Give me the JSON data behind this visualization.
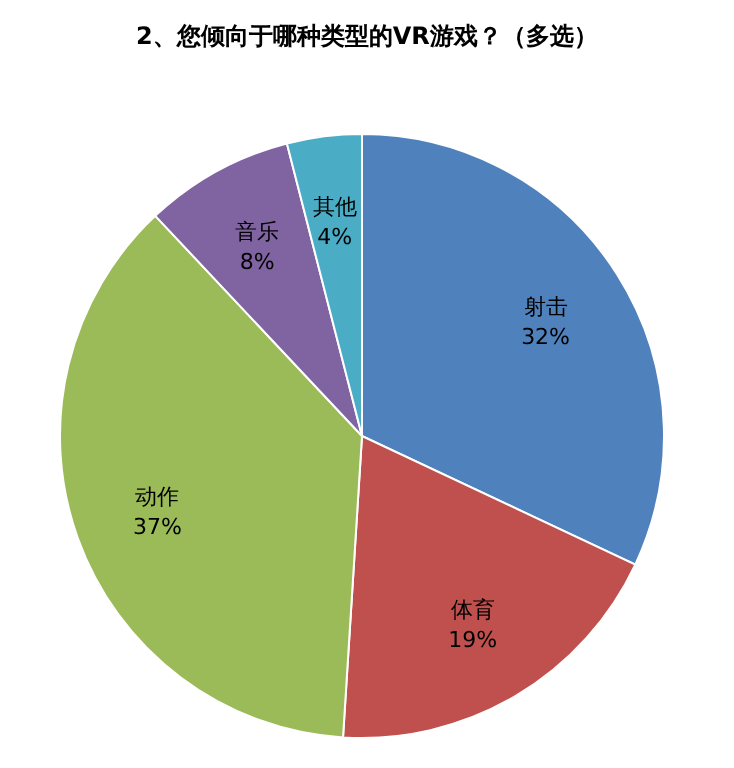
{
  "chart_data": {
    "type": "pie",
    "title": "2、您倾向于哪种类型的VR游戏？（多选）",
    "categories": [
      "射击",
      "体育",
      "动作",
      "音乐",
      "其他"
    ],
    "values": [
      32,
      19,
      37,
      8,
      4
    ],
    "value_labels": [
      "32%",
      "19%",
      "37%",
      "8%",
      "4%"
    ],
    "colors": [
      "#4f81bd",
      "#c0504d",
      "#9bbb59",
      "#8064a2",
      "#4bacc6"
    ],
    "legend": false
  }
}
